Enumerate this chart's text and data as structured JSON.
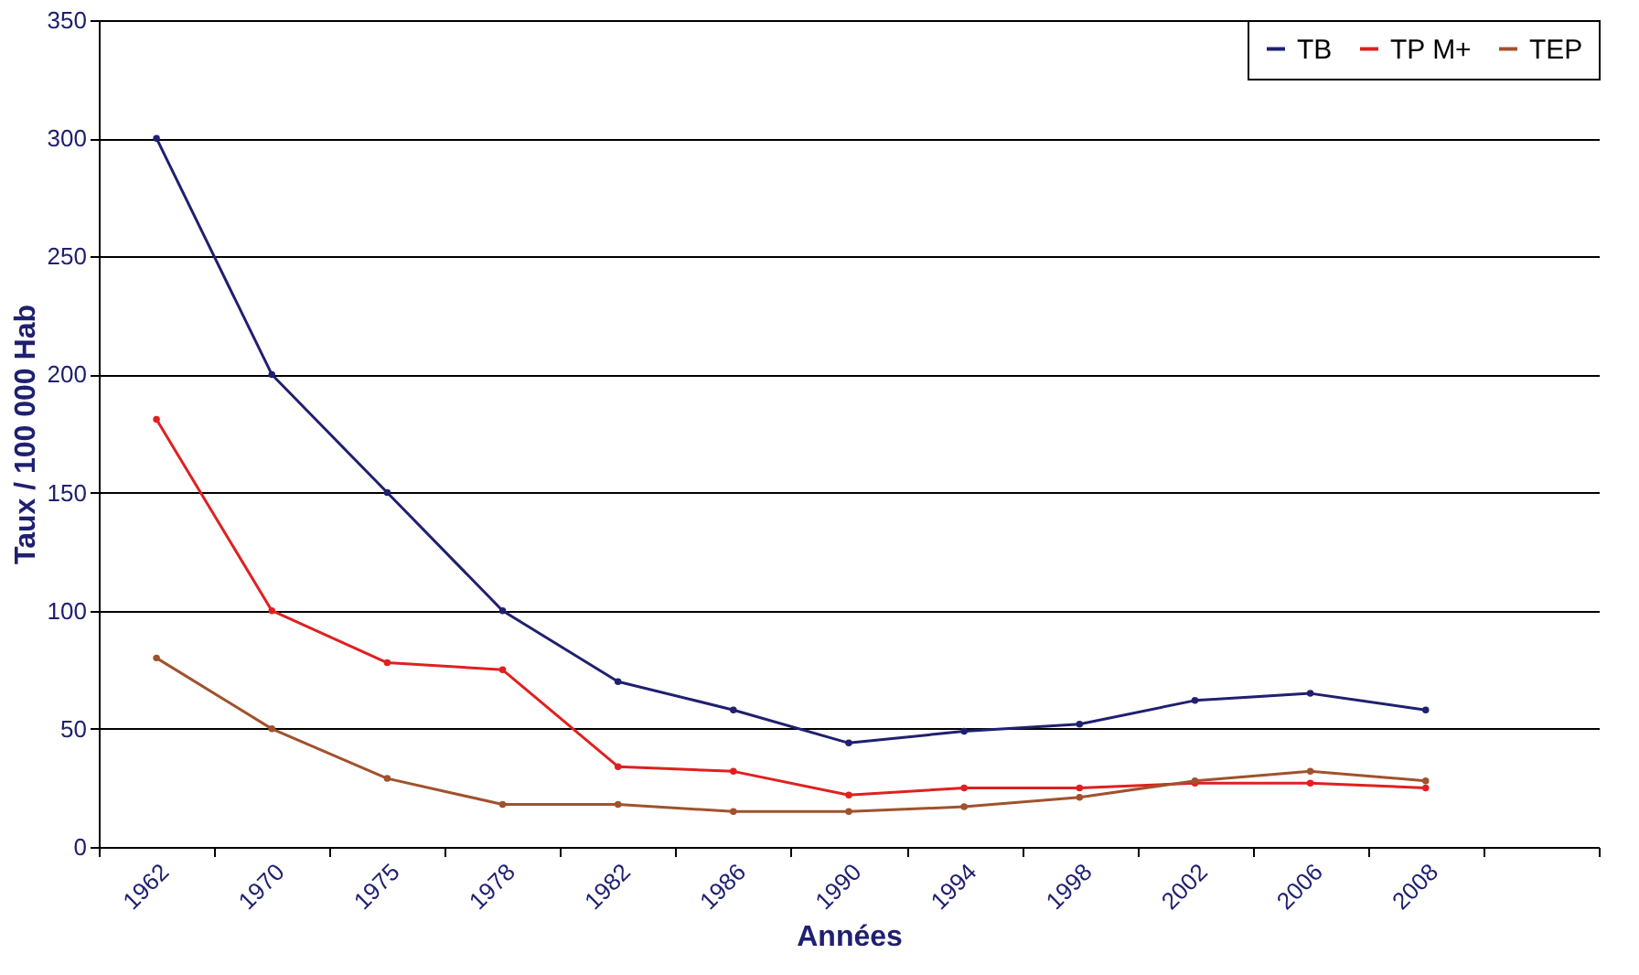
{
  "chart_data": {
    "type": "line",
    "xlabel": "Années",
    "ylabel": "Taux / 100 000 Hab",
    "categories": [
      "1962",
      "1970",
      "1975",
      "1978",
      "1982",
      "1986",
      "1990",
      "1994",
      "1998",
      "2002",
      "2006",
      "2008",
      null
    ],
    "series": [
      {
        "name": "TB",
        "color": "#1f2070",
        "values": [
          300,
          200,
          150,
          100,
          70,
          58,
          44,
          49,
          52,
          62,
          65,
          58,
          null
        ]
      },
      {
        "name": "TP M+",
        "color": "#e02020",
        "values": [
          181,
          100,
          78,
          75,
          34,
          32,
          22,
          25,
          25,
          27,
          27,
          25,
          null
        ]
      },
      {
        "name": "TEP",
        "color": "#a0522d",
        "values": [
          80,
          50,
          29,
          18,
          18,
          15,
          15,
          17,
          21,
          28,
          32,
          28,
          null
        ]
      }
    ],
    "ylim": [
      0,
      350
    ],
    "yticks": [
      0,
      50,
      100,
      150,
      200,
      250,
      300,
      350
    ],
    "grid": "y",
    "legend": "top right",
    "marker": "circle",
    "line_style": "solid"
  }
}
